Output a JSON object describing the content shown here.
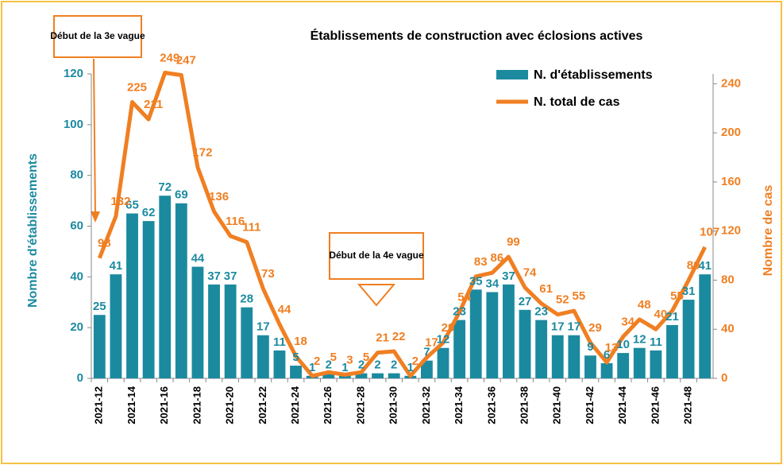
{
  "chart_data": {
    "type": "bar_line",
    "title": "Établissements de construction avec éclosions actives",
    "y_label": "Nombre d'établissements",
    "y2_label": "Nombre de cas",
    "annotations": [
      "Début de la 3e vague",
      "Début de la 4e vague"
    ],
    "categories": [
      "2021-12",
      null,
      "2021-14",
      null,
      "2021-16",
      null,
      "2021-18",
      null,
      "2021-20",
      null,
      "2021-22",
      null,
      "2021-24",
      null,
      "2021-26",
      null,
      "2021-28",
      null,
      "2021-30",
      null,
      "2021-32",
      null,
      "2021-34",
      null,
      "2021-36",
      null,
      "2021-38",
      null,
      "2021-40",
      null,
      "2021-42",
      null,
      "2021-44",
      null,
      "2021-46",
      null,
      "2021-48",
      null
    ],
    "series": [
      {
        "name": "N. d'établissements",
        "color": "#1b8a9f",
        "values": [
          25,
          41,
          65,
          62,
          72,
          69,
          44,
          37,
          37,
          28,
          17,
          11,
          5,
          1,
          2,
          1,
          2,
          2,
          2,
          1,
          7,
          12,
          23,
          35,
          34,
          37,
          27,
          23,
          17,
          17,
          9,
          6,
          10,
          12,
          11,
          21,
          31,
          41
        ]
      },
      {
        "name": "N. total de cas",
        "color": "#f07f22",
        "axis": "y2",
        "values": [
          98,
          132,
          225,
          211,
          249,
          247,
          172,
          136,
          116,
          111,
          73,
          44,
          18,
          2,
          5,
          3,
          5,
          21,
          22,
          2,
          17,
          29,
          54,
          83,
          86,
          99,
          74,
          61,
          52,
          55,
          29,
          13,
          34,
          48,
          40,
          55,
          80,
          107
        ]
      }
    ],
    "ylim": [
      0,
      120
    ],
    "yticks": [
      0,
      20,
      40,
      60,
      80,
      100,
      120
    ],
    "y2lim": [
      0,
      248
    ],
    "y2ticks": [
      0,
      40,
      80,
      120,
      160,
      200,
      240
    ]
  }
}
